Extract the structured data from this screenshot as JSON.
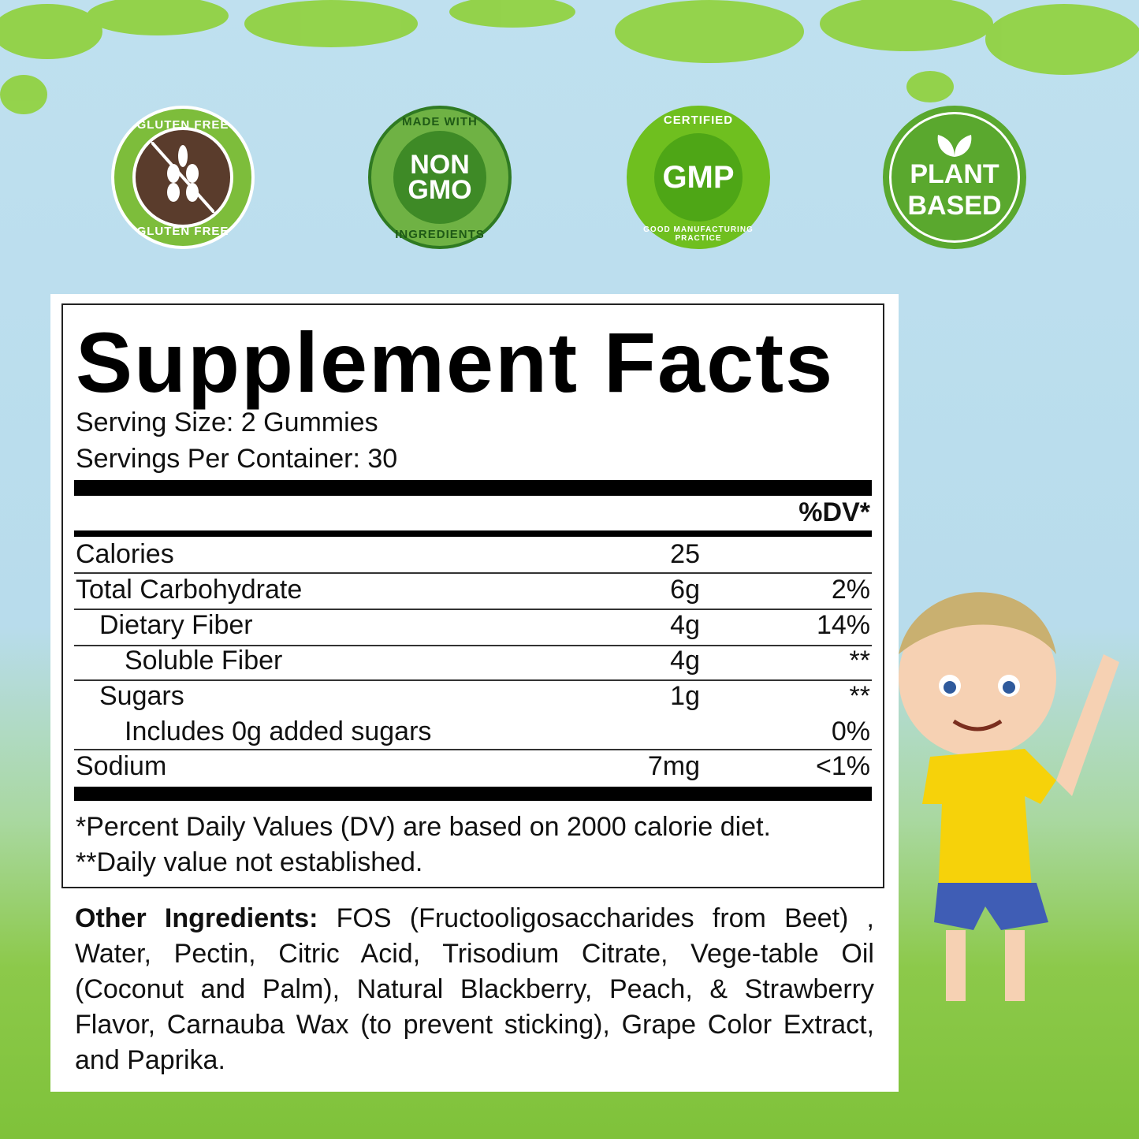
{
  "badges": [
    {
      "icon": "wheat-crossed-icon",
      "top_text": "GLUTEN FREE",
      "bottom_text": "GLUTEN FREE",
      "color": "#7dbd3b",
      "inner": "#5a3c2c"
    },
    {
      "top_text": "MADE WITH",
      "main": [
        "NON",
        "GMO"
      ],
      "bottom_text": "INGREDIENTS",
      "color": "#4f9a2e",
      "inner": "#3e8a26"
    },
    {
      "top_text": "CERTIFIED",
      "main": [
        "GMP"
      ],
      "bottom_text": "GOOD MANUFACTURING PRACTICE",
      "color": "#6fbf1f",
      "inner": "#4ea616"
    },
    {
      "icon": "leaf-icon",
      "main": [
        "PLANT",
        "BASED"
      ],
      "color": "#5aa82e"
    }
  ],
  "facts": {
    "title": "Supplement Facts",
    "serving_size": "Serving Size: 2 Gummies",
    "servings_per_container": "Servings Per Container: 30",
    "dv_header": "%DV*",
    "rows": [
      {
        "name": "Calories",
        "amount": "25",
        "dv": ""
      },
      {
        "name": "Total Carbohydrate",
        "amount": "6g",
        "dv": "2%"
      },
      {
        "name": "Dietary Fiber",
        "amount": "4g",
        "dv": "14%"
      },
      {
        "name": "Soluble Fiber",
        "amount": "4g",
        "dv": "**"
      },
      {
        "name": "Sugars",
        "amount": "1g",
        "dv": "**"
      },
      {
        "name": "Includes 0g added sugars",
        "amount": "",
        "dv": "0%"
      },
      {
        "name": "Sodium",
        "amount": "7mg",
        "dv": "<1%"
      }
    ],
    "footnote1": "*Percent Daily Values (DV) are based on 2000 calorie diet.",
    "footnote2": "**Daily value not established."
  },
  "ingredients": {
    "label": "Other Ingredients:",
    "text": " FOS (Fructooligosaccharides from Beet) , Water, Pectin, Citric Acid, Trisodium Citrate, Vege-table Oil (Coconut and Palm), Natural Blackberry, Peach, & Strawberry Flavor, Carnauba Wax (to prevent sticking), Grape Color Extract, and Paprika."
  }
}
